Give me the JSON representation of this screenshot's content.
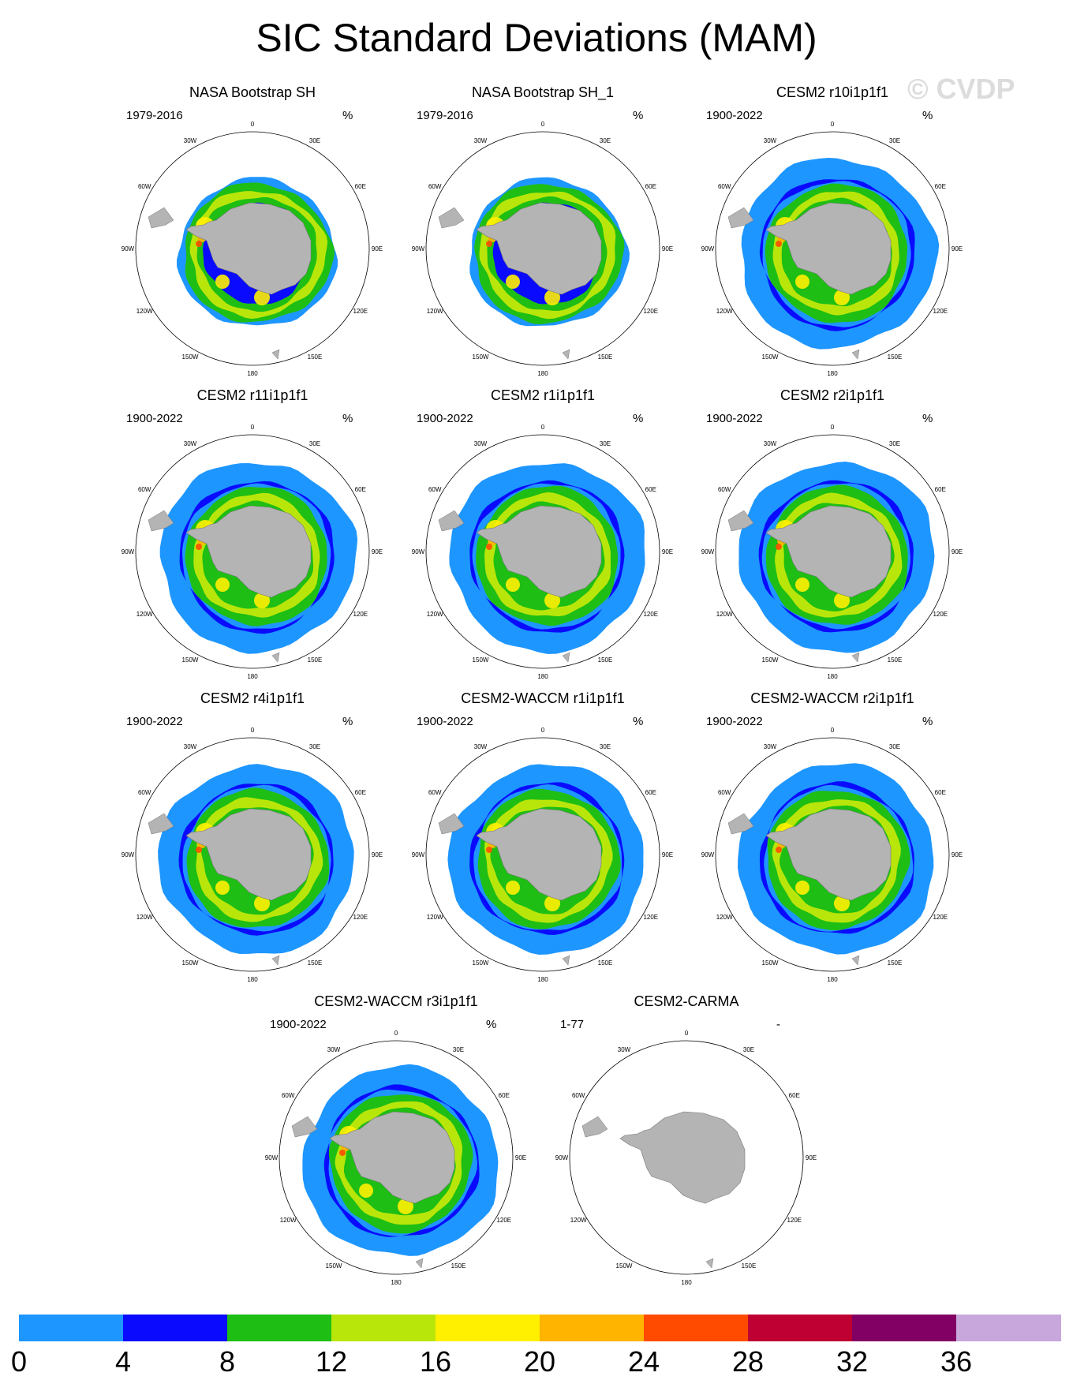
{
  "title": "SIC Standard Deviations (MAM)",
  "watermark": "© CVDP",
  "longitude_labels": [
    "0",
    "30E",
    "60E",
    "90E",
    "120E",
    "150E",
    "180",
    "150W",
    "120W",
    "90W",
    "60W",
    "30W"
  ],
  "panels": [
    {
      "title": "NASA Bootstrap SH",
      "period": "1979-2016",
      "unit": "%",
      "ice": "obs"
    },
    {
      "title": "NASA Bootstrap SH_1",
      "period": "1979-2016",
      "unit": "%",
      "ice": "obs"
    },
    {
      "title": "CESM2 r10i1p1f1",
      "period": "1900-2022",
      "unit": "%",
      "ice": "model"
    },
    {
      "title": "CESM2 r11i1p1f1",
      "period": "1900-2022",
      "unit": "%",
      "ice": "model"
    },
    {
      "title": "CESM2 r1i1p1f1",
      "period": "1900-2022",
      "unit": "%",
      "ice": "model"
    },
    {
      "title": "CESM2 r2i1p1f1",
      "period": "1900-2022",
      "unit": "%",
      "ice": "model"
    },
    {
      "title": "CESM2 r4i1p1f1",
      "period": "1900-2022",
      "unit": "%",
      "ice": "model"
    },
    {
      "title": "CESM2-WACCM r1i1p1f1",
      "period": "1900-2022",
      "unit": "%",
      "ice": "model"
    },
    {
      "title": "CESM2-WACCM r2i1p1f1",
      "period": "1900-2022",
      "unit": "%",
      "ice": "model"
    },
    {
      "title": "CESM2-WACCM r3i1p1f1",
      "period": "1900-2022",
      "unit": "%",
      "ice": "model"
    },
    {
      "title": "CESM2-CARMA",
      "period": "1-77",
      "unit": "-",
      "ice": "none"
    }
  ],
  "colorbar": {
    "colors": [
      "#1e96ff",
      "#0a0aff",
      "#1ebe14",
      "#b9e60a",
      "#fff000",
      "#ffb400",
      "#ff4b00",
      "#be0032",
      "#820064",
      "#c8a8dc"
    ],
    "tick_labels": [
      "0",
      "4",
      "8",
      "12",
      "16",
      "20",
      "24",
      "28",
      "32",
      "36"
    ]
  },
  "colors": {
    "land": "#b4b4b4",
    "ocean": "#ffffff"
  }
}
